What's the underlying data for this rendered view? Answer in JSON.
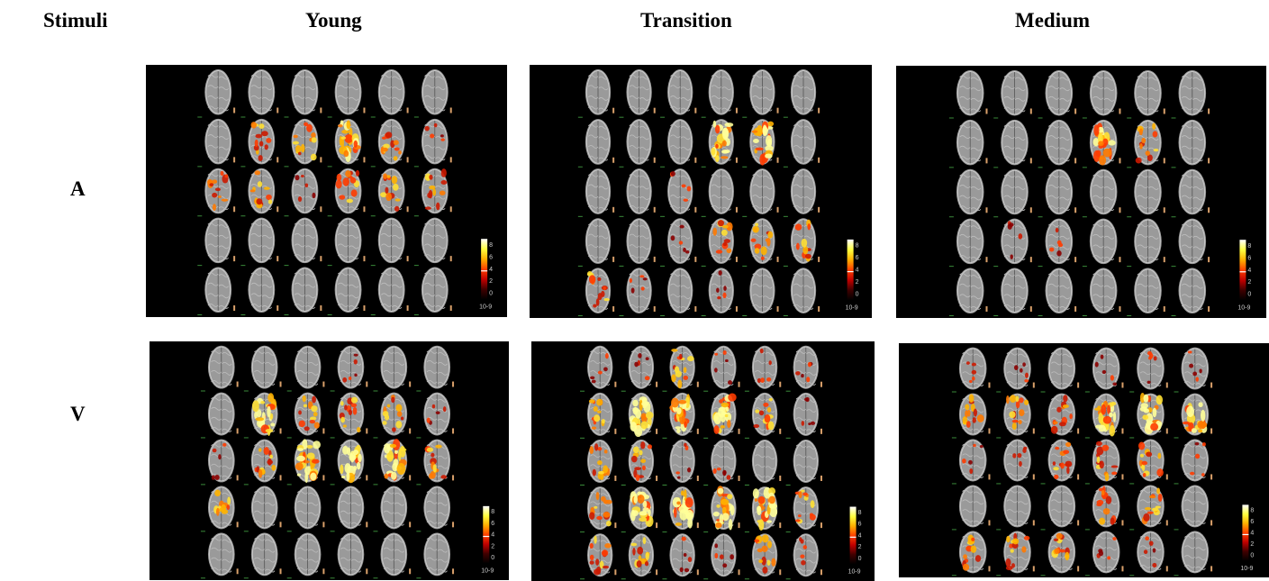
{
  "headers": {
    "stimuli": "Stimuli",
    "columns": [
      "Young",
      "Transition",
      "Medium"
    ]
  },
  "rows": [
    "A",
    "V"
  ],
  "colorbar": {
    "ticks": [
      "8",
      "6",
      "4",
      "2",
      "0"
    ],
    "unit": "10-9",
    "colors": [
      "#ffffff",
      "#ffff40",
      "#ffb000",
      "#ff4000",
      "#c00000",
      "#400000",
      "#000000"
    ]
  },
  "activation_maps": {
    "A": {
      "Young": [
        [
          0,
          0,
          0,
          0,
          0,
          0
        ],
        [
          0,
          2,
          2,
          3,
          2,
          1
        ],
        [
          2,
          2,
          1,
          2,
          2,
          2
        ],
        [
          0,
          0,
          0,
          0,
          0,
          0
        ],
        [
          0,
          0,
          0,
          0,
          0,
          0
        ]
      ],
      "Transition": [
        [
          0,
          0,
          0,
          0,
          0,
          0
        ],
        [
          0,
          0,
          0,
          3,
          3,
          0
        ],
        [
          0,
          0,
          1,
          0,
          0,
          0
        ],
        [
          0,
          0,
          1,
          2,
          2,
          2
        ],
        [
          2,
          1,
          0,
          1,
          0,
          0
        ]
      ],
      "Medium": [
        [
          0,
          0,
          0,
          0,
          0,
          0
        ],
        [
          0,
          0,
          0,
          3,
          2,
          0
        ],
        [
          0,
          0,
          0,
          0,
          0,
          0
        ],
        [
          0,
          1,
          1,
          0,
          0,
          0
        ],
        [
          0,
          0,
          0,
          0,
          0,
          0
        ]
      ]
    },
    "V": {
      "Young": [
        [
          0,
          0,
          0,
          1,
          0,
          0
        ],
        [
          0,
          3,
          2,
          2,
          2,
          1
        ],
        [
          1,
          2,
          3,
          3,
          3,
          2
        ],
        [
          2,
          0,
          0,
          0,
          0,
          0
        ],
        [
          0,
          0,
          0,
          0,
          0,
          0
        ]
      ],
      "Transition": [
        [
          1,
          1,
          2,
          1,
          1,
          1
        ],
        [
          2,
          3,
          3,
          3,
          2,
          1
        ],
        [
          2,
          2,
          1,
          1,
          0,
          0
        ],
        [
          2,
          3,
          3,
          3,
          3,
          2
        ],
        [
          2,
          2,
          1,
          1,
          2,
          1
        ]
      ],
      "Medium": [
        [
          1,
          1,
          0,
          1,
          1,
          1
        ],
        [
          2,
          2,
          2,
          3,
          3,
          3
        ],
        [
          1,
          1,
          2,
          2,
          2,
          1
        ],
        [
          0,
          0,
          0,
          2,
          2,
          0
        ],
        [
          2,
          2,
          2,
          1,
          1,
          0
        ]
      ]
    }
  }
}
